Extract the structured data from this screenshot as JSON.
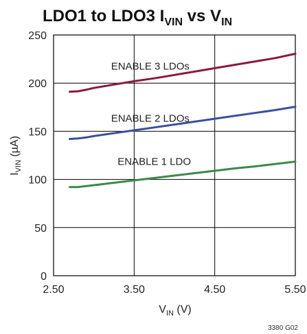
{
  "chart_data": {
    "type": "line",
    "title": "LDO1 to LDO3 I",
    "title_sub1": "VIN",
    "title_mid": " vs V",
    "title_sub2": "IN",
    "xlabel": "V",
    "xlabel_sub": "IN",
    "xlabel_unit": " (V)",
    "ylabel": "I",
    "ylabel_sub": "VIN",
    "ylabel_unit": " (µA)",
    "xlim": [
      2.5,
      5.5
    ],
    "ylim": [
      0,
      250
    ],
    "x_ticks": [
      "2.50",
      "3.50",
      "4.50",
      "5.50"
    ],
    "y_ticks": [
      "0",
      "50",
      "100",
      "150",
      "200",
      "250"
    ],
    "grid": true,
    "series": [
      {
        "name": "ENABLE 3 LDOs",
        "color": "#8b1a3a",
        "x": [
          2.7,
          2.8,
          2.9,
          3.0,
          3.25,
          3.5,
          3.75,
          4.0,
          4.25,
          4.5,
          4.75,
          5.0,
          5.25,
          5.5
        ],
        "y": [
          191,
          191.5,
          193,
          195,
          198.5,
          202,
          205,
          208.5,
          212,
          215.5,
          219,
          222.5,
          226,
          230.5
        ]
      },
      {
        "name": "ENABLE 2 LDOs",
        "color": "#3a4f9e",
        "x": [
          2.7,
          2.8,
          2.9,
          3.0,
          3.25,
          3.5,
          3.75,
          4.0,
          4.25,
          4.5,
          4.75,
          5.0,
          5.25,
          5.5
        ],
        "y": [
          142,
          142.5,
          143.5,
          145,
          148,
          151,
          154,
          157,
          160,
          163,
          166,
          169,
          172,
          175.5
        ]
      },
      {
        "name": "ENABLE 1 LDO",
        "color": "#3a8a4a",
        "x": [
          2.7,
          2.8,
          2.9,
          3.0,
          3.25,
          3.5,
          3.75,
          4.0,
          4.25,
          4.5,
          4.75,
          5.0,
          5.25,
          5.5
        ],
        "y": [
          92,
          92,
          93,
          94,
          96.5,
          99,
          101.5,
          104,
          106.5,
          109,
          111.5,
          113.5,
          116,
          118.5
        ]
      }
    ],
    "annotations": [
      {
        "text": "ENABLE 3 LDOs",
        "x": 3.7,
        "y": 214
      },
      {
        "text": "ENABLE 2 LDOs",
        "x": 3.7,
        "y": 160
      },
      {
        "text": "ENABLE 1 LDO",
        "x": 3.75,
        "y": 115
      }
    ],
    "figure_note": "3380 G02"
  }
}
